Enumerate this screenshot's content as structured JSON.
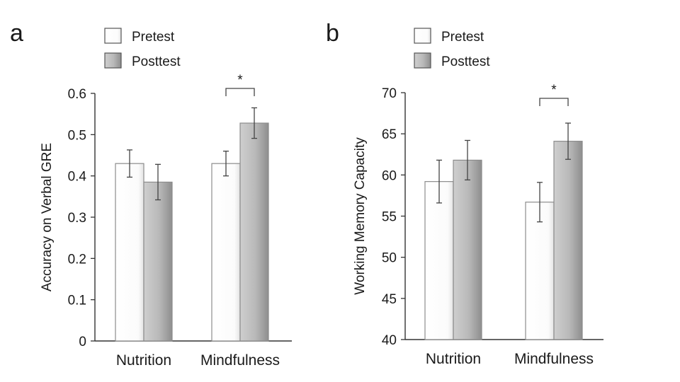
{
  "chart_data": [
    {
      "panel_label": "a",
      "type": "bar",
      "ylabel": "Accuracy on Verbal GRE",
      "ylim": [
        0,
        0.6
      ],
      "yticks": [
        "0",
        "0.1",
        "0.2",
        "0.3",
        "0.4",
        "0.5",
        "0.6"
      ],
      "categories": [
        "Nutrition",
        "Mindfulness"
      ],
      "series": [
        {
          "name": "Pretest",
          "values": [
            0.43,
            0.43
          ],
          "errors": [
            0.033,
            0.03
          ]
        },
        {
          "name": "Posttest",
          "values": [
            0.385,
            0.528
          ],
          "errors": [
            0.043,
            0.037
          ]
        }
      ],
      "legend": {
        "placement": "top-left"
      },
      "annotations": [
        {
          "text": "*",
          "category": "Mindfulness"
        }
      ],
      "grid": false
    },
    {
      "panel_label": "b",
      "type": "bar",
      "ylabel": "Working Memory Capacity",
      "ylim": [
        40,
        70
      ],
      "yticks": [
        "40",
        "45",
        "50",
        "55",
        "60",
        "65",
        "70"
      ],
      "categories": [
        "Nutrition",
        "Mindfulness"
      ],
      "series": [
        {
          "name": "Pretest",
          "values": [
            59.2,
            56.7
          ],
          "errors": [
            2.6,
            2.4
          ]
        },
        {
          "name": "Posttest",
          "values": [
            61.8,
            64.1
          ],
          "errors": [
            2.4,
            2.2
          ]
        }
      ],
      "legend": {
        "placement": "top-left"
      },
      "annotations": [
        {
          "text": "*",
          "category": "Mindfulness"
        }
      ],
      "grid": false
    }
  ],
  "colors": {
    "pretest_fill": "#fafafa",
    "posttest_fill": "#b9b9b9",
    "bar_stroke": "#8c8c8c",
    "axis": "#333333",
    "text": "#1a1a1a"
  }
}
